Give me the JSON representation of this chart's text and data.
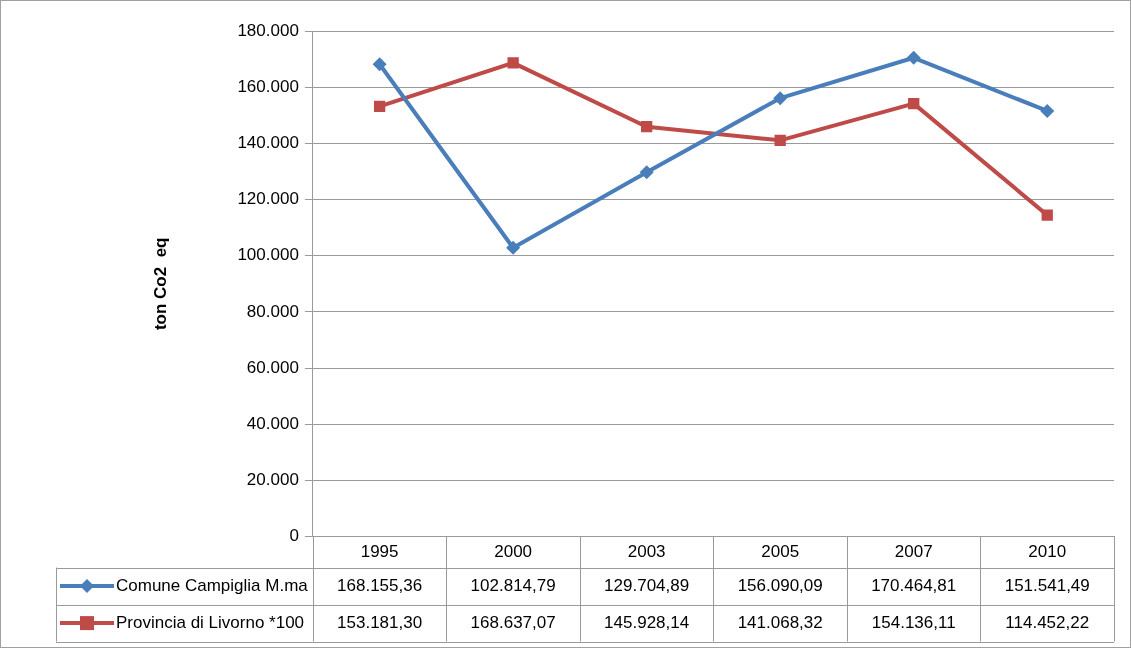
{
  "chart_data": {
    "type": "line",
    "ylabel": "ton Co2  eq",
    "categories": [
      "1995",
      "2000",
      "2003",
      "2005",
      "2007",
      "2010"
    ],
    "series": [
      {
        "name": "Comune Campiglia M.ma",
        "color": "#4a7ebb",
        "marker": "diamond",
        "values": [
          168155.36,
          102814.79,
          129704.89,
          156090.09,
          170464.81,
          151541.49
        ],
        "value_labels": [
          "168.155,36",
          "102.814,79",
          "129.704,89",
          "156.090,09",
          "170.464,81",
          "151.541,49"
        ]
      },
      {
        "name": "Provincia di Livorno *100",
        "color": "#be4b48",
        "marker": "square",
        "values": [
          153181.3,
          168637.07,
          145928.14,
          141068.32,
          154136.11,
          114452.22
        ],
        "value_labels": [
          "153.181,30",
          "168.637,07",
          "145.928,14",
          "141.068,32",
          "154.136,11",
          "114.452,22"
        ]
      }
    ],
    "ylim": [
      0,
      180000
    ],
    "yticks": [
      {
        "value": 0,
        "label": "0"
      },
      {
        "value": 20000,
        "label": "20.000"
      },
      {
        "value": 40000,
        "label": "40.000"
      },
      {
        "value": 60000,
        "label": "60.000"
      },
      {
        "value": 80000,
        "label": "80.000"
      },
      {
        "value": 100000,
        "label": "100.000"
      },
      {
        "value": 120000,
        "label": "120.000"
      },
      {
        "value": 140000,
        "label": "140.000"
      },
      {
        "value": 160000,
        "label": "160.000"
      },
      {
        "value": 180000,
        "label": "180.000"
      }
    ],
    "grid": "y",
    "legend": "bottom",
    "line_style": "solid"
  }
}
